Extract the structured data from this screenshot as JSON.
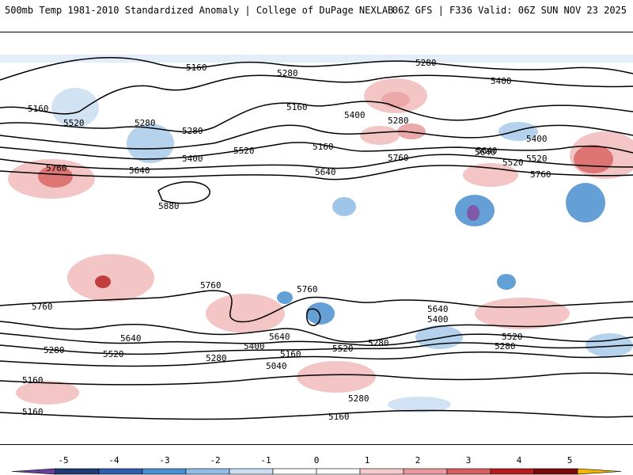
{
  "header": {
    "title_left": "500mb Temp 1981-2010 Standardized Anomaly | College of DuPage NEXLAB",
    "title_right": "06Z GFS | F336 Valid: 06Z SUN NOV 23 2025"
  },
  "colorbar": {
    "ticks": [
      "-5",
      "-4",
      "-3",
      "-2",
      "-1",
      "0",
      "1",
      "2",
      "3",
      "4",
      "5"
    ],
    "colors": [
      "#6a3d9a",
      "#1f3b73",
      "#2e5fa8",
      "#4a90d0",
      "#8fbde6",
      "#c9def2",
      "#ffffff",
      "#ffffff",
      "#f6caca",
      "#e89a9a",
      "#d85d5d",
      "#b81c1c",
      "#7a0a0a",
      "#f5b400"
    ]
  },
  "contour_labels": [
    "5160",
    "5280",
    "5160",
    "5280",
    "5400",
    "5520",
    "5280",
    "5160",
    "5400",
    "5280",
    "5640",
    "5520",
    "5760",
    "5640",
    "5280",
    "5160",
    "5400",
    "5520",
    "5760",
    "5640",
    "5400",
    "5520",
    "5640",
    "5880",
    "5760",
    "5760",
    "5640",
    "5760",
    "5400",
    "5640",
    "5760",
    "5520",
    "5400",
    "5640",
    "5520",
    "5280",
    "5160",
    "5040",
    "5520",
    "5280",
    "5280",
    "5160",
    "5280",
    "5160",
    "5160",
    "5280"
  ],
  "map": {
    "positive_anomaly_color": "#e06060",
    "negative_anomaly_color": "#4a90d0"
  }
}
